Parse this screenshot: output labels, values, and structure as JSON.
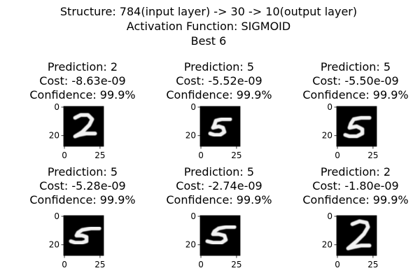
{
  "figure": {
    "title_lines": [
      "Structure: 784(input layer) -> 30 -> 10(output layer)",
      "Activation Function: SIGMOID",
      "Best 6"
    ]
  },
  "chart_data": {
    "type": "image-grid",
    "panels": [
      {
        "title_lines": [
          "Prediction: 2",
          "Cost: -8.63e-09",
          "Confidence: 99.9%"
        ],
        "prediction": 2,
        "cost": -8.63e-09,
        "confidence": 99.9,
        "xticks": [
          "0",
          "25"
        ],
        "yticks": [
          "0",
          "20"
        ],
        "xlim": [
          0,
          28
        ],
        "ylim": [
          0,
          28
        ],
        "strokes": [
          [
            [
              8,
              8
            ],
            [
              12,
              6
            ],
            [
              17,
              6
            ],
            [
              20,
              9
            ],
            [
              18,
              13
            ],
            [
              13,
              18
            ],
            [
              8,
              21
            ],
            [
              11,
              20
            ],
            [
              16,
              19
            ],
            [
              22,
              19
            ]
          ]
        ]
      },
      {
        "title_lines": [
          "Prediction: 5",
          "Cost: -5.52e-09",
          "Confidence: 99.9%"
        ],
        "prediction": 5,
        "cost": -5.52e-09,
        "confidence": 99.9,
        "xticks": [
          "0",
          "25"
        ],
        "yticks": [
          "0",
          "20"
        ],
        "xlim": [
          0,
          28
        ],
        "ylim": [
          0,
          28
        ],
        "strokes": [
          [
            [
              21,
              9
            ],
            [
              15,
              9
            ],
            [
              11,
              10
            ],
            [
              10,
              13
            ],
            [
              9,
              15
            ],
            [
              13,
              14
            ],
            [
              16,
              15
            ],
            [
              17,
              18
            ],
            [
              14,
              20
            ],
            [
              10,
              20
            ],
            [
              7,
              19
            ]
          ]
        ]
      },
      {
        "title_lines": [
          "Prediction: 5",
          "Cost: -5.50e-09",
          "Confidence: 99.9%"
        ],
        "prediction": 5,
        "cost": -5.5e-09,
        "confidence": 99.9,
        "xticks": [
          "0",
          "25"
        ],
        "yticks": [
          "0",
          "20"
        ],
        "xlim": [
          0,
          28
        ],
        "ylim": [
          0,
          28
        ],
        "strokes": [
          [
            [
              23,
              8
            ],
            [
              17,
              8
            ],
            [
              12,
              9
            ],
            [
              10,
              12
            ],
            [
              9,
              15
            ],
            [
              14,
              14
            ],
            [
              18,
              16
            ],
            [
              18,
              19
            ],
            [
              14,
              21
            ],
            [
              9,
              21
            ],
            [
              6,
              20
            ]
          ]
        ]
      },
      {
        "title_lines": [
          "Prediction: 5",
          "Cost: -5.28e-09",
          "Confidence: 99.9%"
        ],
        "prediction": 5,
        "cost": -5.28e-09,
        "confidence": 99.9,
        "xticks": [
          "0",
          "25"
        ],
        "yticks": [
          "0",
          "20"
        ],
        "xlim": [
          0,
          28
        ],
        "ylim": [
          0,
          28
        ],
        "strokes": [
          [
            [
              25,
              9
            ],
            [
              19,
              9
            ],
            [
              13,
              10
            ],
            [
              10,
              12
            ],
            [
              9,
              14
            ],
            [
              13,
              14
            ],
            [
              16,
              15
            ],
            [
              16,
              18
            ],
            [
              13,
              19
            ],
            [
              8,
              19
            ],
            [
              5,
              18
            ]
          ]
        ]
      },
      {
        "title_lines": [
          "Prediction: 5",
          "Cost: -2.74e-09",
          "Confidence: 99.9%"
        ],
        "prediction": 5,
        "cost": -2.74e-09,
        "confidence": 99.9,
        "xticks": [
          "0",
          "25"
        ],
        "yticks": [
          "0",
          "20"
        ],
        "xlim": [
          0,
          28
        ],
        "ylim": [
          0,
          28
        ],
        "strokes": [
          [
            [
              24,
              8
            ],
            [
              18,
              8
            ],
            [
              13,
              9
            ],
            [
              10,
              11
            ],
            [
              9,
              13
            ],
            [
              13,
              13
            ],
            [
              17,
              14
            ],
            [
              18,
              17
            ],
            [
              15,
              19
            ],
            [
              9,
              19
            ],
            [
              5,
              18
            ]
          ]
        ]
      },
      {
        "title_lines": [
          "Prediction: 2",
          "Cost: -1.80e-09",
          "Confidence: 99.9%"
        ],
        "prediction": 2,
        "cost": -1.8e-09,
        "confidence": 99.9,
        "xticks": [
          "0",
          "25"
        ],
        "yticks": [
          "0",
          "20"
        ],
        "xlim": [
          0,
          28
        ],
        "ylim": [
          0,
          28
        ],
        "strokes": [
          [
            [
              11,
              6
            ],
            [
              16,
              4
            ],
            [
              21,
              5
            ],
            [
              22,
              8
            ],
            [
              19,
              13
            ],
            [
              14,
              18
            ],
            [
              8,
              23
            ],
            [
              12,
              22
            ],
            [
              17,
              21
            ],
            [
              23,
              21
            ]
          ]
        ]
      }
    ]
  }
}
